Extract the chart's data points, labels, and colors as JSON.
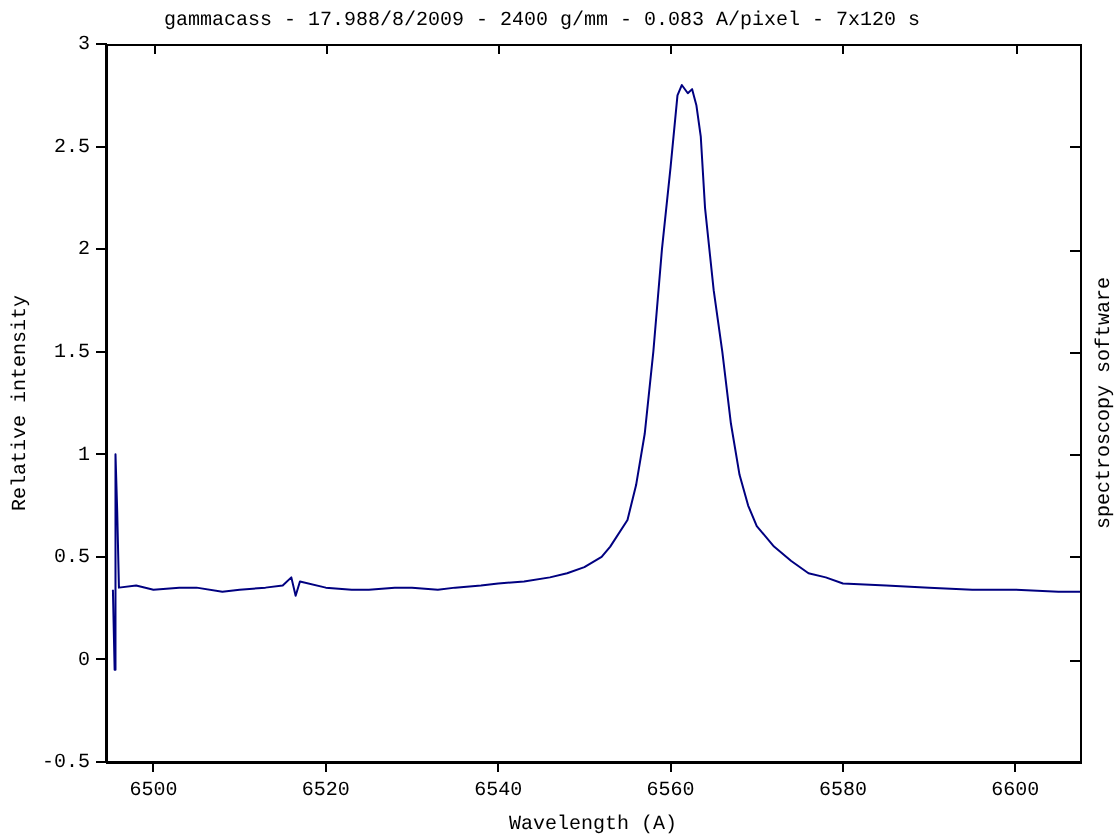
{
  "chart_data": {
    "type": "line",
    "title": "gammacass - 17.988/8/2009 - 2400 g/mm - 0.083 A/pixel - 7x120 s",
    "xlabel": "Wavelength (A)",
    "ylabel": "Relative intensity",
    "annotations": [
      "spectroscopy software"
    ],
    "x": [
      6495.3,
      6495.5,
      6495.6,
      6495.8,
      6496,
      6498,
      6500,
      6503,
      6505,
      6508,
      6510,
      6513,
      6515,
      6516,
      6516.5,
      6517,
      6520,
      6523,
      6525,
      6528,
      6530,
      6533,
      6535,
      6538,
      6540,
      6543,
      6546,
      6548,
      6550,
      6552,
      6553,
      6555,
      6556,
      6557,
      6558,
      6559,
      6560,
      6560.8,
      6561.3,
      6562,
      6562.5,
      6563,
      6563.5,
      6564,
      6565,
      6566,
      6567,
      6568,
      6569,
      6570,
      6572,
      6574,
      6576,
      6578,
      6580,
      6585,
      6590,
      6595,
      6600,
      6605,
      6607.5
    ],
    "series": [
      {
        "color": "#000080",
        "values": [
          0.34,
          -0.05,
          1.0,
          0.72,
          0.35,
          0.36,
          0.34,
          0.35,
          0.35,
          0.33,
          0.34,
          0.35,
          0.36,
          0.4,
          0.31,
          0.38,
          0.35,
          0.34,
          0.34,
          0.35,
          0.35,
          0.34,
          0.35,
          0.36,
          0.37,
          0.38,
          0.4,
          0.42,
          0.45,
          0.5,
          0.55,
          0.68,
          0.85,
          1.1,
          1.5,
          2.0,
          2.4,
          2.75,
          2.8,
          2.76,
          2.78,
          2.7,
          2.55,
          2.2,
          1.8,
          1.5,
          1.15,
          0.9,
          0.75,
          0.65,
          0.55,
          0.48,
          0.42,
          0.4,
          0.37,
          0.36,
          0.35,
          0.34,
          0.34,
          0.33,
          0.33
        ]
      }
    ],
    "xlim": [
      6494.5,
      6607.5
    ],
    "xticks": [
      6500,
      6520,
      6540,
      6560,
      6580,
      6600
    ],
    "ylim": [
      -0.5,
      3
    ],
    "yticks": [
      -0.5,
      0,
      0.5,
      1,
      1.5,
      2,
      2.5,
      3
    ],
    "grid": false,
    "legend": false,
    "marker": "none",
    "line_style": "solid"
  }
}
